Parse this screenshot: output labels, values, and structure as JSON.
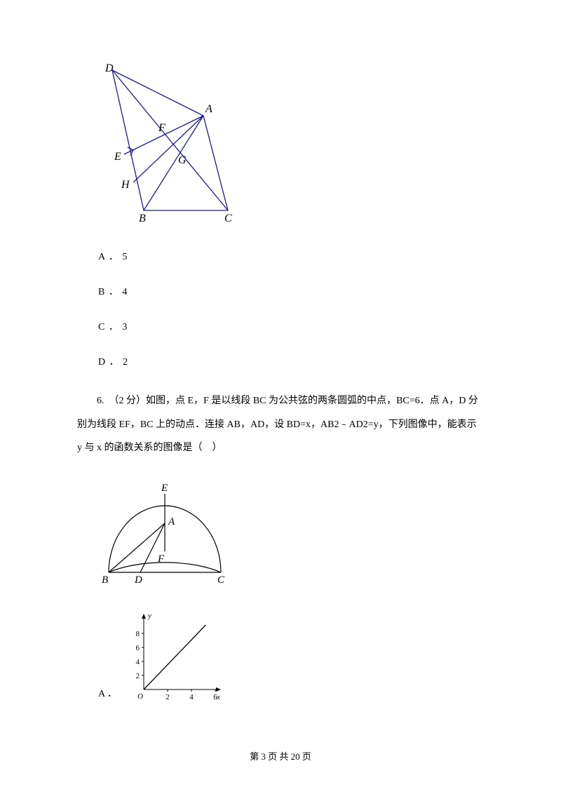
{
  "figure1": {
    "labels": {
      "D": "D",
      "A": "A",
      "F": "F",
      "E": "E",
      "G": "G",
      "H": "H",
      "B": "B",
      "C": "C"
    },
    "stroke": "#1a1aa0",
    "font": "italic 16px serif"
  },
  "options5": {
    "A": "A ． 5",
    "B": "B ． 4",
    "C": "C ． 3",
    "D": "D ． 2"
  },
  "question6": {
    "text": "6.　（2 分）如图，点 E，F 是以线段 BC 为公共弦的两条圆弧的中点，BC=6．点 A，D 分别为线段 EF，BC 上的动点．连接 AB，AD，设 BD=x，AB2﹣AD2=y，下列图像中，能表示 y 与 x 的函数关系的图像是（　）"
  },
  "figure2": {
    "labels": {
      "E": "E",
      "A": "A",
      "F": "F",
      "B": "B",
      "D": "D",
      "C": "C"
    },
    "stroke": "#000000",
    "font": "italic 15px serif"
  },
  "chart": {
    "type": "line",
    "xlim": [
      0,
      6
    ],
    "ylim": [
      0,
      10
    ],
    "xticks": [
      2,
      4,
      6
    ],
    "yticks": [
      2,
      4,
      6,
      8
    ],
    "xlabel": "x",
    "ylabel": "y",
    "origin_label": "O",
    "line": {
      "x1": 0,
      "y1": 0,
      "x2": 5.2,
      "y2": 9.2
    },
    "axis_color": "#000000",
    "text_color": "#000000",
    "fontsize": 11
  },
  "optionA_label": "A ．",
  "footer": "第 3 页 共 20 页"
}
